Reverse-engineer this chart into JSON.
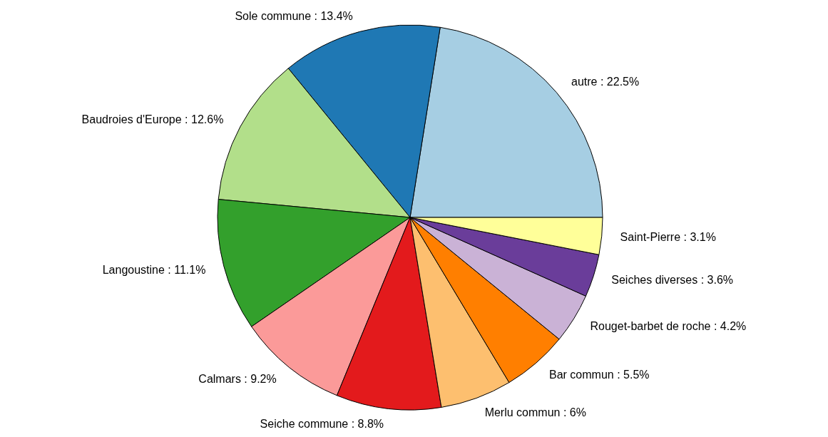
{
  "chart_data": {
    "type": "pie",
    "categories": [
      "autre : 22.5%",
      "Sole commune : 13.4%",
      "Baudroies d'Europe : 12.6%",
      "Langoustine : 11.1%",
      "Calmars : 9.2%",
      "Seiche commune : 8.8%",
      "Merlu commun : 6%",
      "Bar commun : 5.5%",
      "Rouget-barbet de roche : 4.2%",
      "Seiches diverses : 3.6%",
      "Saint-Pierre : 3.1%"
    ],
    "values": [
      22.5,
      13.4,
      12.6,
      11.1,
      9.2,
      8.8,
      6,
      5.5,
      4.2,
      3.6,
      3.1
    ],
    "colors": [
      "#a6cee3",
      "#1f78b4",
      "#b2df8a",
      "#33a02c",
      "#fb9a99",
      "#e31a1c",
      "#fdbf6f",
      "#ff7f00",
      "#cab2d6",
      "#6a3d9a",
      "#ffff99"
    ]
  }
}
